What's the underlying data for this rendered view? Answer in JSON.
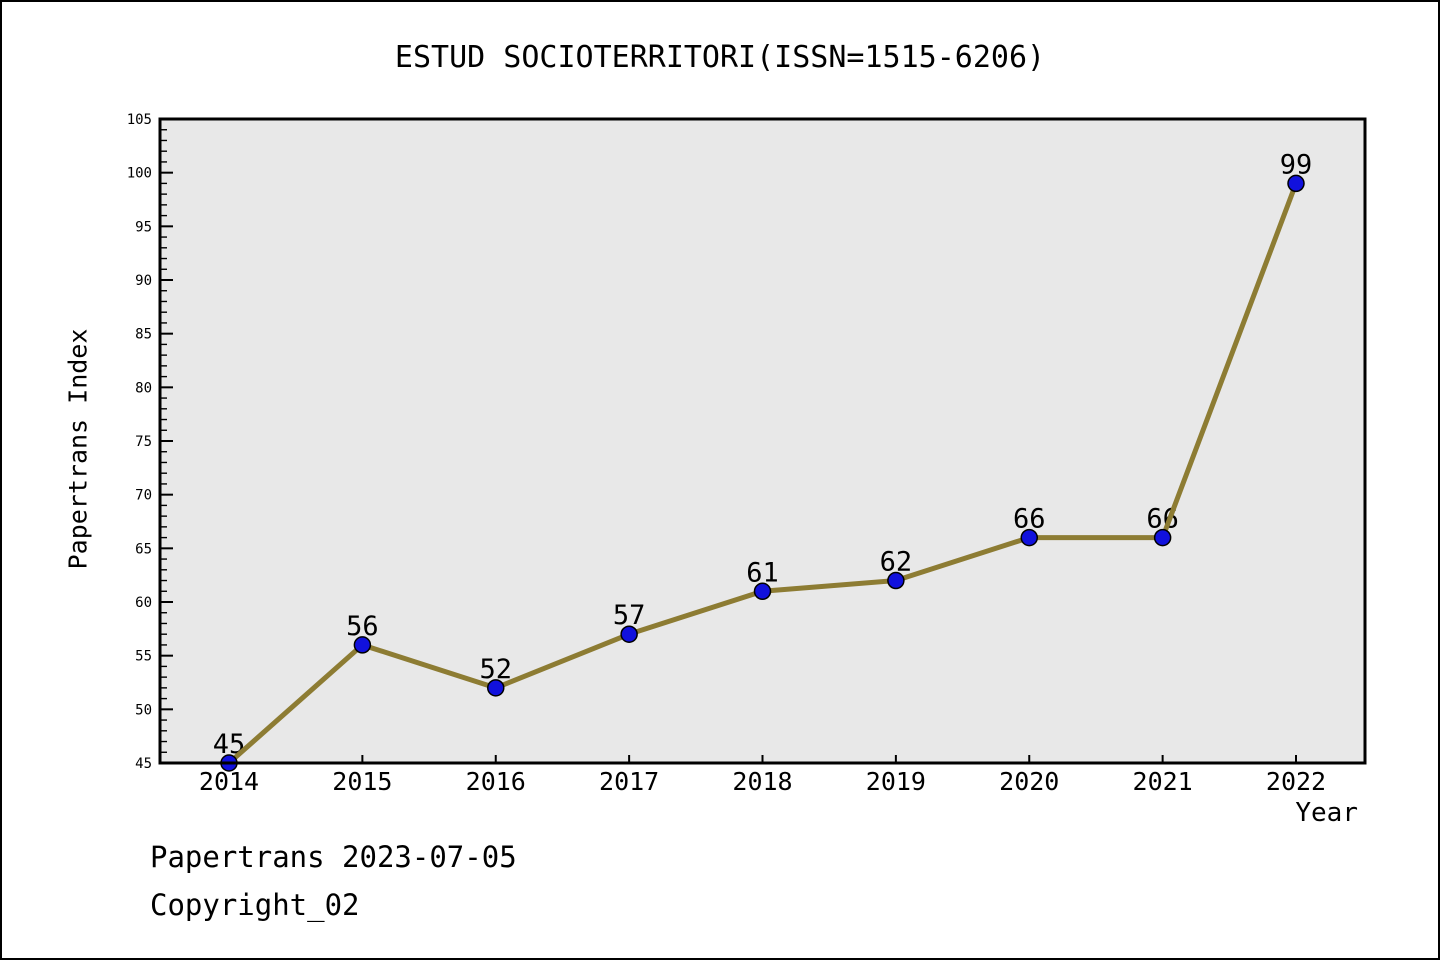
{
  "chart_data": {
    "type": "line",
    "title": "ESTUD SOCIOTERRITORI(ISSN=1515-6206)",
    "xlabel": "Year",
    "ylabel": "Papertrans Index",
    "x": [
      2014,
      2015,
      2016,
      2017,
      2018,
      2019,
      2020,
      2021,
      2022
    ],
    "series": [
      {
        "name": "Papertrans Index",
        "values": [
          45,
          56,
          52,
          57,
          61,
          62,
          66,
          66,
          99
        ]
      }
    ],
    "ylim": [
      45,
      105
    ],
    "ytick_step": 5,
    "yminor_step": 1,
    "grid": false,
    "legend_position": "none",
    "line_color": "#8d7c33",
    "marker_color": "#1111dd",
    "marker_edge_color": "#000000",
    "plot_bg_color": "#e8e8e8",
    "frame_color": "#000000"
  },
  "footer": {
    "line1": "Papertrans 2023-07-05",
    "line2": "Copyright_02"
  }
}
